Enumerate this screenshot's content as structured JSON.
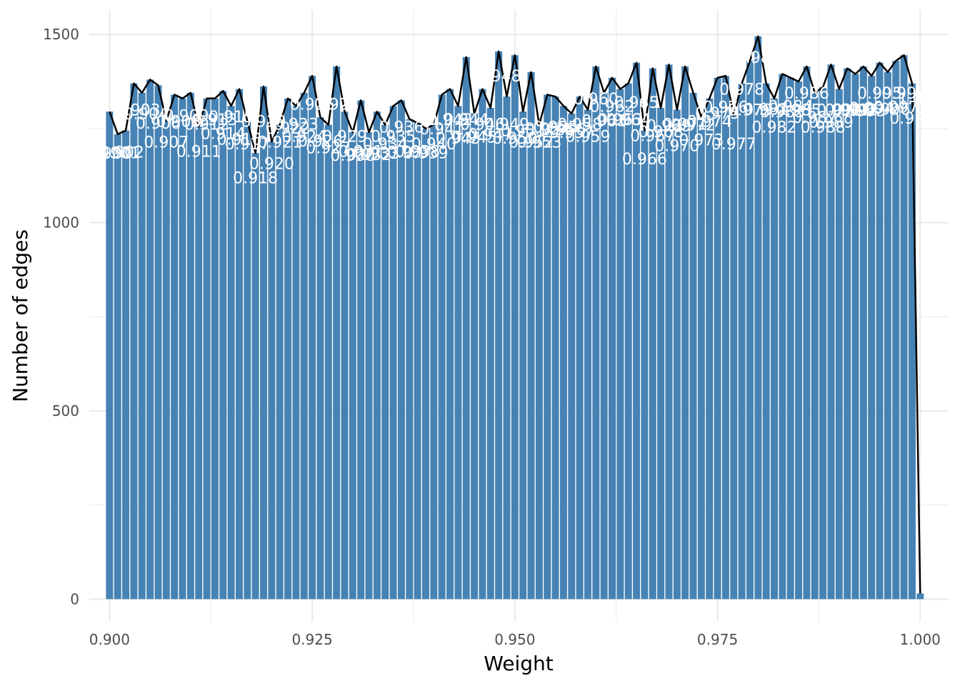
{
  "chart_data": {
    "type": "bar",
    "xlabel": "Weight",
    "ylabel": "Number of edges",
    "xlim": [
      0.8975,
      1.0035
    ],
    "ylim": [
      -60,
      1565
    ],
    "grid": true,
    "x_ticks": [
      "0.900",
      "0.925",
      "0.950",
      "0.975",
      "1.000"
    ],
    "y_ticks": [
      "0",
      "500",
      "1000",
      "1500"
    ],
    "bar_color": "#4682b4",
    "line_color": "#000000",
    "x": [
      0.9,
      0.901,
      0.902,
      0.903,
      0.904,
      0.905,
      0.906,
      0.907,
      0.908,
      0.909,
      0.91,
      0.911,
      0.912,
      0.913,
      0.914,
      0.915,
      0.916,
      0.917,
      0.918,
      0.919,
      0.92,
      0.921,
      0.922,
      0.923,
      0.924,
      0.925,
      0.926,
      0.927,
      0.928,
      0.929,
      0.93,
      0.931,
      0.932,
      0.933,
      0.934,
      0.935,
      0.936,
      0.937,
      0.938,
      0.939,
      0.94,
      0.941,
      0.942,
      0.943,
      0.944,
      0.945,
      0.946,
      0.947,
      0.948,
      0.949,
      0.95,
      0.951,
      0.952,
      0.953,
      0.954,
      0.955,
      0.956,
      0.957,
      0.958,
      0.959,
      0.96,
      0.961,
      0.962,
      0.963,
      0.964,
      0.965,
      0.966,
      0.967,
      0.968,
      0.969,
      0.97,
      0.971,
      0.972,
      0.973,
      0.974,
      0.975,
      0.976,
      0.977,
      0.978,
      0.979,
      0.98,
      0.981,
      0.982,
      0.983,
      0.984,
      0.985,
      0.986,
      0.987,
      0.988,
      0.989,
      0.99,
      0.991,
      0.992,
      0.993,
      0.994,
      0.995,
      0.996,
      0.997,
      0.998,
      0.999,
      1.0
    ],
    "values": [
      1295,
      1235,
      1245,
      1370,
      1345,
      1380,
      1365,
      1270,
      1340,
      1330,
      1345,
      1255,
      1330,
      1330,
      1350,
      1310,
      1355,
      1270,
      1185,
      1362,
      1215,
      1260,
      1330,
      1310,
      1345,
      1390,
      1280,
      1260,
      1415,
      1295,
      1240,
      1325,
      1240,
      1295,
      1260,
      1310,
      1325,
      1275,
      1265,
      1250,
      1260,
      1340,
      1355,
      1310,
      1440,
      1290,
      1355,
      1305,
      1455,
      1335,
      1445,
      1295,
      1400,
      1260,
      1340,
      1335,
      1310,
      1290,
      1335,
      1300,
      1415,
      1345,
      1385,
      1355,
      1370,
      1425,
      1245,
      1410,
      1305,
      1420,
      1300,
      1415,
      1345,
      1280,
      1330,
      1385,
      1390,
      1285,
      1370,
      1430,
      1495,
      1370,
      1330,
      1395,
      1385,
      1375,
      1415,
      1345,
      1360,
      1420,
      1355,
      1410,
      1395,
      1415,
      1390,
      1425,
      1400,
      1430,
      1445,
      1370,
      15
    ],
    "annotations": [
      {
        "text": "0.900",
        "x": 0.9,
        "y": 1185
      },
      {
        "text": "0.901",
        "x": 0.901,
        "y": 1186
      },
      {
        "text": "0.902",
        "x": 0.9015,
        "y": 1188
      },
      {
        "text": "0.903",
        "x": 0.9035,
        "y": 1300
      },
      {
        "text": "0.904",
        "x": 0.9045,
        "y": 1290
      },
      {
        "text": "0.906",
        "x": 0.906,
        "y": 1265
      },
      {
        "text": "0.907",
        "x": 0.907,
        "y": 1215
      },
      {
        "text": "0.908",
        "x": 0.9085,
        "y": 1270
      },
      {
        "text": "0.909",
        "x": 0.9095,
        "y": 1285
      },
      {
        "text": "0.911",
        "x": 0.911,
        "y": 1190
      },
      {
        "text": "0.912",
        "x": 0.912,
        "y": 1262
      },
      {
        "text": "0.913",
        "x": 0.913,
        "y": 1275
      },
      {
        "text": "0.914",
        "x": 0.914,
        "y": 1238
      },
      {
        "text": "0.915",
        "x": 0.915,
        "y": 1282
      },
      {
        "text": "0.916",
        "x": 0.916,
        "y": 1222
      },
      {
        "text": "0.917",
        "x": 0.917,
        "y": 1210
      },
      {
        "text": "0.918",
        "x": 0.918,
        "y": 1120
      },
      {
        "text": "0.919",
        "x": 0.919,
        "y": 1270
      },
      {
        "text": "0.920",
        "x": 0.92,
        "y": 1158
      },
      {
        "text": "0.921",
        "x": 0.921,
        "y": 1215
      },
      {
        "text": "0.922",
        "x": 0.922,
        "y": 1252
      },
      {
        "text": "0.923",
        "x": 0.923,
        "y": 1262
      },
      {
        "text": "0.924",
        "x": 0.924,
        "y": 1230
      },
      {
        "text": "0.925",
        "x": 0.925,
        "y": 1315
      },
      {
        "text": "0.926",
        "x": 0.926,
        "y": 1218
      },
      {
        "text": "0.927",
        "x": 0.927,
        "y": 1200
      },
      {
        "text": "0.928",
        "x": 0.928,
        "y": 1315
      },
      {
        "text": "0.929",
        "x": 0.929,
        "y": 1230
      },
      {
        "text": "0.930",
        "x": 0.93,
        "y": 1180
      },
      {
        "text": "0.931",
        "x": 0.931,
        "y": 1190
      },
      {
        "text": "0.932",
        "x": 0.932,
        "y": 1182
      },
      {
        "text": "0.933",
        "x": 0.933,
        "y": 1185
      },
      {
        "text": "0.934",
        "x": 0.934,
        "y": 1210
      },
      {
        "text": "0.935",
        "x": 0.935,
        "y": 1230
      },
      {
        "text": "0.936",
        "x": 0.936,
        "y": 1255
      },
      {
        "text": "0.937",
        "x": 0.937,
        "y": 1188
      },
      {
        "text": "0.938",
        "x": 0.938,
        "y": 1190
      },
      {
        "text": "0.939",
        "x": 0.939,
        "y": 1186
      },
      {
        "text": "0.940",
        "x": 0.94,
        "y": 1210
      },
      {
        "text": "0.941",
        "x": 0.941,
        "y": 1250
      },
      {
        "text": "0.942",
        "x": 0.942,
        "y": 1275
      },
      {
        "text": "0.943",
        "x": 0.943,
        "y": 1225
      },
      {
        "text": "0.944",
        "x": 0.944,
        "y": 1275
      },
      {
        "text": "0.945",
        "x": 0.945,
        "y": 1228
      },
      {
        "text": "0.946",
        "x": 0.946,
        "y": 1262
      },
      {
        "text": "0.947",
        "x": 0.947,
        "y": 1235
      },
      {
        "text": "0.948",
        "x": 0.948,
        "y": 1390
      },
      {
        "text": "0.949",
        "x": 0.949,
        "y": 1262
      },
      {
        "text": "0.950",
        "x": 0.95,
        "y": 1225
      },
      {
        "text": "0.951",
        "x": 0.951,
        "y": 1245
      },
      {
        "text": "0.952",
        "x": 0.952,
        "y": 1215
      },
      {
        "text": "0.953",
        "x": 0.953,
        "y": 1215
      },
      {
        "text": "0.954",
        "x": 0.954,
        "y": 1250
      },
      {
        "text": "0.955",
        "x": 0.955,
        "y": 1255
      },
      {
        "text": "0.956",
        "x": 0.956,
        "y": 1248
      },
      {
        "text": "0.957",
        "x": 0.957,
        "y": 1240
      },
      {
        "text": "0.958",
        "x": 0.958,
        "y": 1262
      },
      {
        "text": "0.959",
        "x": 0.959,
        "y": 1230
      },
      {
        "text": "0.960",
        "x": 0.96,
        "y": 1330
      },
      {
        "text": "0.961",
        "x": 0.961,
        "y": 1272
      },
      {
        "text": "0.962",
        "x": 0.962,
        "y": 1310
      },
      {
        "text": "0.963",
        "x": 0.963,
        "y": 1275
      },
      {
        "text": "0.964",
        "x": 0.964,
        "y": 1275
      },
      {
        "text": "0.965",
        "x": 0.965,
        "y": 1320
      },
      {
        "text": "0.966",
        "x": 0.966,
        "y": 1170
      },
      {
        "text": "0.967",
        "x": 0.967,
        "y": 1232
      },
      {
        "text": "0.968",
        "x": 0.968,
        "y": 1242
      },
      {
        "text": "0.969",
        "x": 0.969,
        "y": 1258
      },
      {
        "text": "0.970",
        "x": 0.97,
        "y": 1205
      },
      {
        "text": "0.971",
        "x": 0.971,
        "y": 1262
      },
      {
        "text": "0.972",
        "x": 0.972,
        "y": 1260
      },
      {
        "text": "0.973",
        "x": 0.973,
        "y": 1220
      },
      {
        "text": "0.974",
        "x": 0.974,
        "y": 1270
      },
      {
        "text": "0.975",
        "x": 0.975,
        "y": 1292
      },
      {
        "text": "0.976",
        "x": 0.976,
        "y": 1308
      },
      {
        "text": "0.977",
        "x": 0.977,
        "y": 1210
      },
      {
        "text": "0.978",
        "x": 0.978,
        "y": 1355
      },
      {
        "text": "0.979",
        "x": 0.979,
        "y": 1300
      },
      {
        "text": "0.980",
        "x": 0.98,
        "y": 1440
      },
      {
        "text": "0.981",
        "x": 0.981,
        "y": 1302
      },
      {
        "text": "0.982",
        "x": 0.982,
        "y": 1255
      },
      {
        "text": "0.983",
        "x": 0.983,
        "y": 1295
      },
      {
        "text": "0.984",
        "x": 0.984,
        "y": 1310
      },
      {
        "text": "0.985",
        "x": 0.985,
        "y": 1300
      },
      {
        "text": "0.986",
        "x": 0.986,
        "y": 1345
      },
      {
        "text": "0.987",
        "x": 0.987,
        "y": 1280
      },
      {
        "text": "0.988",
        "x": 0.988,
        "y": 1255
      },
      {
        "text": "0.989",
        "x": 0.989,
        "y": 1268
      },
      {
        "text": "0.990",
        "x": 0.99,
        "y": 1300
      },
      {
        "text": "0.991",
        "x": 0.991,
        "y": 1300
      },
      {
        "text": "0.992",
        "x": 0.992,
        "y": 1300
      },
      {
        "text": "0.993",
        "x": 0.993,
        "y": 1298
      },
      {
        "text": "0.994",
        "x": 0.994,
        "y": 1305
      },
      {
        "text": "0.995",
        "x": 0.995,
        "y": 1345
      },
      {
        "text": "0.996",
        "x": 0.996,
        "y": 1302
      },
      {
        "text": "0.997",
        "x": 0.997,
        "y": 1308
      },
      {
        "text": "0.998",
        "x": 0.998,
        "y": 1345
      },
      {
        "text": "0.999",
        "x": 0.999,
        "y": 1278
      },
      {
        "text": "1.000",
        "x": 1.0,
        "y": 1330
      }
    ]
  }
}
